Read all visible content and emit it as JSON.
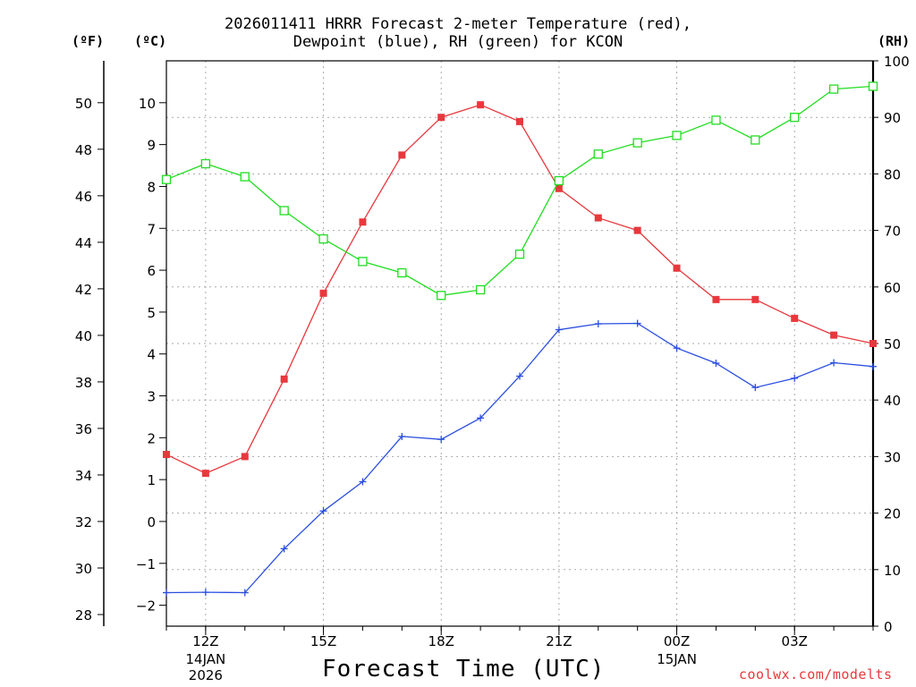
{
  "title": {
    "line1": "2026011411 HRRR Forecast 2-meter Temperature (red),",
    "line2": "Dewpoint (blue), RH (green) for KCON"
  },
  "units": {
    "fahrenheit": "(ºF)",
    "celsius": "(ºC)",
    "rh": "(RH)"
  },
  "credit": "coolwx.com/modelts",
  "colors": {
    "temperature": "#e8383d",
    "dewpoint": "#2b4fe0",
    "rh": "#22dd22",
    "grid": "#aaaaaa"
  },
  "chart_data": {
    "type": "line",
    "title": "2026011411 HRRR Forecast 2-meter Temperature (red), Dewpoint (blue), RH (green) for KCON",
    "xlabel": "Forecast Time (UTC)",
    "x": [
      11,
      12,
      13,
      14,
      15,
      16,
      17,
      18,
      19,
      20,
      21,
      22,
      23,
      24,
      25,
      26,
      27,
      28,
      29
    ],
    "x_tick_labels": [
      {
        "x": 12,
        "label": "12Z"
      },
      {
        "x": 15,
        "label": "15Z"
      },
      {
        "x": 18,
        "label": "18Z"
      },
      {
        "x": 21,
        "label": "21Z"
      },
      {
        "x": 24,
        "label": "00Z"
      },
      {
        "x": 27,
        "label": "03Z"
      }
    ],
    "date_labels": [
      {
        "x": 12,
        "lines": [
          "14JAN",
          "2026"
        ]
      },
      {
        "x": 24,
        "lines": [
          "15JAN"
        ]
      }
    ],
    "xlim": [
      11,
      29
    ],
    "axes": {
      "celsius": {
        "ylim": [
          -2.5,
          11
        ],
        "ticks": [
          -2,
          -1,
          0,
          1,
          2,
          3,
          4,
          5,
          6,
          7,
          8,
          9,
          10
        ]
      },
      "fahrenheit": {
        "ticks": [
          28,
          30,
          32,
          34,
          36,
          38,
          40,
          42,
          44,
          46,
          48,
          50
        ]
      },
      "rh": {
        "ylim": [
          0,
          100
        ],
        "ticks": [
          0,
          10,
          20,
          30,
          40,
          50,
          60,
          70,
          80,
          90,
          100
        ]
      }
    },
    "series": [
      {
        "name": "Temperature",
        "axis": "celsius",
        "marker": "filled-square",
        "values": [
          1.6,
          1.15,
          1.55,
          3.4,
          5.45,
          7.15,
          8.75,
          9.65,
          9.95,
          9.55,
          7.95,
          7.25,
          6.95,
          6.05,
          5.3,
          5.3,
          4.85,
          4.45,
          4.25
        ]
      },
      {
        "name": "Dewpoint",
        "axis": "celsius",
        "marker": "plus",
        "values": [
          -1.7,
          -1.69,
          -1.7,
          -0.65,
          0.25,
          0.95,
          2.03,
          1.96,
          2.47,
          3.47,
          4.58,
          4.72,
          4.73,
          4.14,
          3.78,
          3.2,
          3.42,
          3.79,
          3.7
        ]
      },
      {
        "name": "RH",
        "axis": "rh",
        "marker": "open-square",
        "values": [
          79,
          81.8,
          79.5,
          73.5,
          68.5,
          64.5,
          62.5,
          58.5,
          59.5,
          65.8,
          78.8,
          83.5,
          85.5,
          86.8,
          89.5,
          86,
          90,
          95,
          95.5
        ]
      }
    ]
  }
}
